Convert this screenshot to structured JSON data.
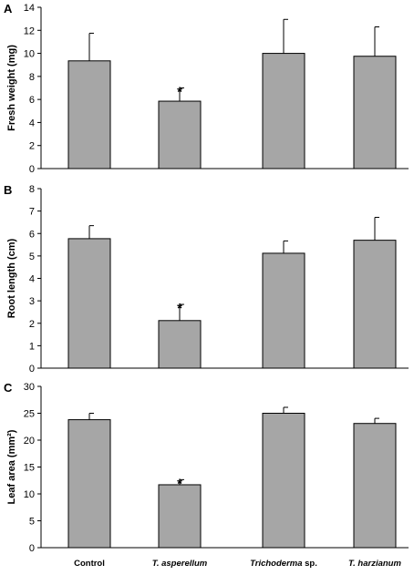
{
  "chart_data": [
    {
      "type": "bar",
      "panel": "A",
      "categories": [
        "Control",
        "T. asperellum",
        "Trichoderma sp.",
        "T. harzianum"
      ],
      "values": [
        9.35,
        5.85,
        10.0,
        9.75
      ],
      "errors": [
        2.4,
        1.15,
        2.95,
        2.55
      ],
      "significance": [
        "",
        "*",
        "",
        ""
      ],
      "ylabel": "Fresh weight (mg)",
      "ylim": [
        0,
        14
      ],
      "yticks": [
        0,
        2,
        4,
        6,
        8,
        10,
        12,
        14
      ],
      "bar_color": "#a6a6a6"
    },
    {
      "type": "bar",
      "panel": "B",
      "categories": [
        "Control",
        "T. asperellum",
        "Trichoderma sp.",
        "T. harzianum"
      ],
      "values": [
        5.77,
        2.12,
        5.12,
        5.7
      ],
      "errors": [
        0.58,
        0.72,
        0.55,
        1.02
      ],
      "significance": [
        "",
        "*",
        "",
        ""
      ],
      "ylabel": "Root length (cm)",
      "ylim": [
        0,
        8
      ],
      "yticks": [
        0,
        1,
        2,
        3,
        4,
        5,
        6,
        7,
        8
      ],
      "bar_color": "#a6a6a6"
    },
    {
      "type": "bar",
      "panel": "C",
      "categories": [
        "Control",
        "T. asperellum",
        "Trichoderma sp.",
        "T. harzianum"
      ],
      "values": [
        23.8,
        11.7,
        25.0,
        23.1
      ],
      "errors": [
        1.2,
        0.95,
        1.1,
        0.95
      ],
      "significance": [
        "",
        "*",
        "",
        ""
      ],
      "ylabel": "Leaf area (mm²)",
      "ylim": [
        0,
        30
      ],
      "yticks": [
        0,
        5,
        10,
        15,
        20,
        25,
        30
      ],
      "bar_color": "#a6a6a6"
    }
  ],
  "x_category_labels": [
    {
      "prefix": "Control",
      "suffix": "",
      "italic_prefix": false
    },
    {
      "prefix": "T. asperellum",
      "suffix": "",
      "italic_prefix": true
    },
    {
      "prefix": "Trichoderma",
      "suffix": " sp.",
      "italic_prefix": true
    },
    {
      "prefix": "T. harzianum",
      "suffix": "",
      "italic_prefix": true
    }
  ]
}
